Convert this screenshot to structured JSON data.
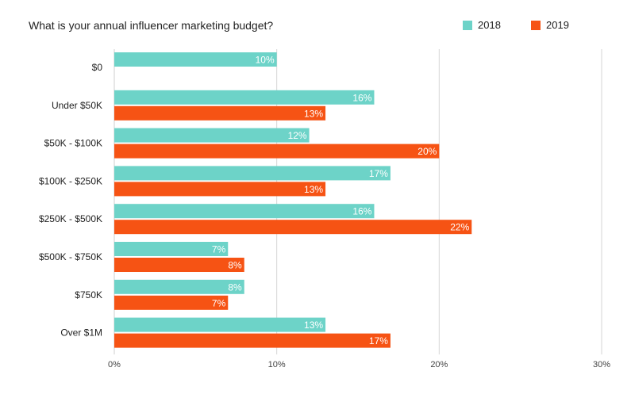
{
  "chart_data": {
    "type": "bar",
    "orientation": "horizontal",
    "title": "What is your annual influencer marketing budget?",
    "categories": [
      "$0",
      "Under $50K",
      "$50K - $100K",
      "$100K - $250K",
      "$250K - $500K",
      "$500K - $750K",
      "$750K",
      "Over $1M"
    ],
    "series": [
      {
        "name": "2018",
        "color": "#6dd3c8",
        "values": [
          10,
          16,
          12,
          17,
          16,
          7,
          8,
          13
        ]
      },
      {
        "name": "2019",
        "color": "#f65314",
        "values": [
          null,
          13,
          20,
          13,
          22,
          8,
          7,
          17
        ]
      }
    ],
    "xlim": [
      0,
      30
    ],
    "xticks": [
      0,
      10,
      20,
      30
    ],
    "tick_suffix": "%",
    "value_suffix": "%",
    "grid": true,
    "legend_position": "top-right"
  }
}
